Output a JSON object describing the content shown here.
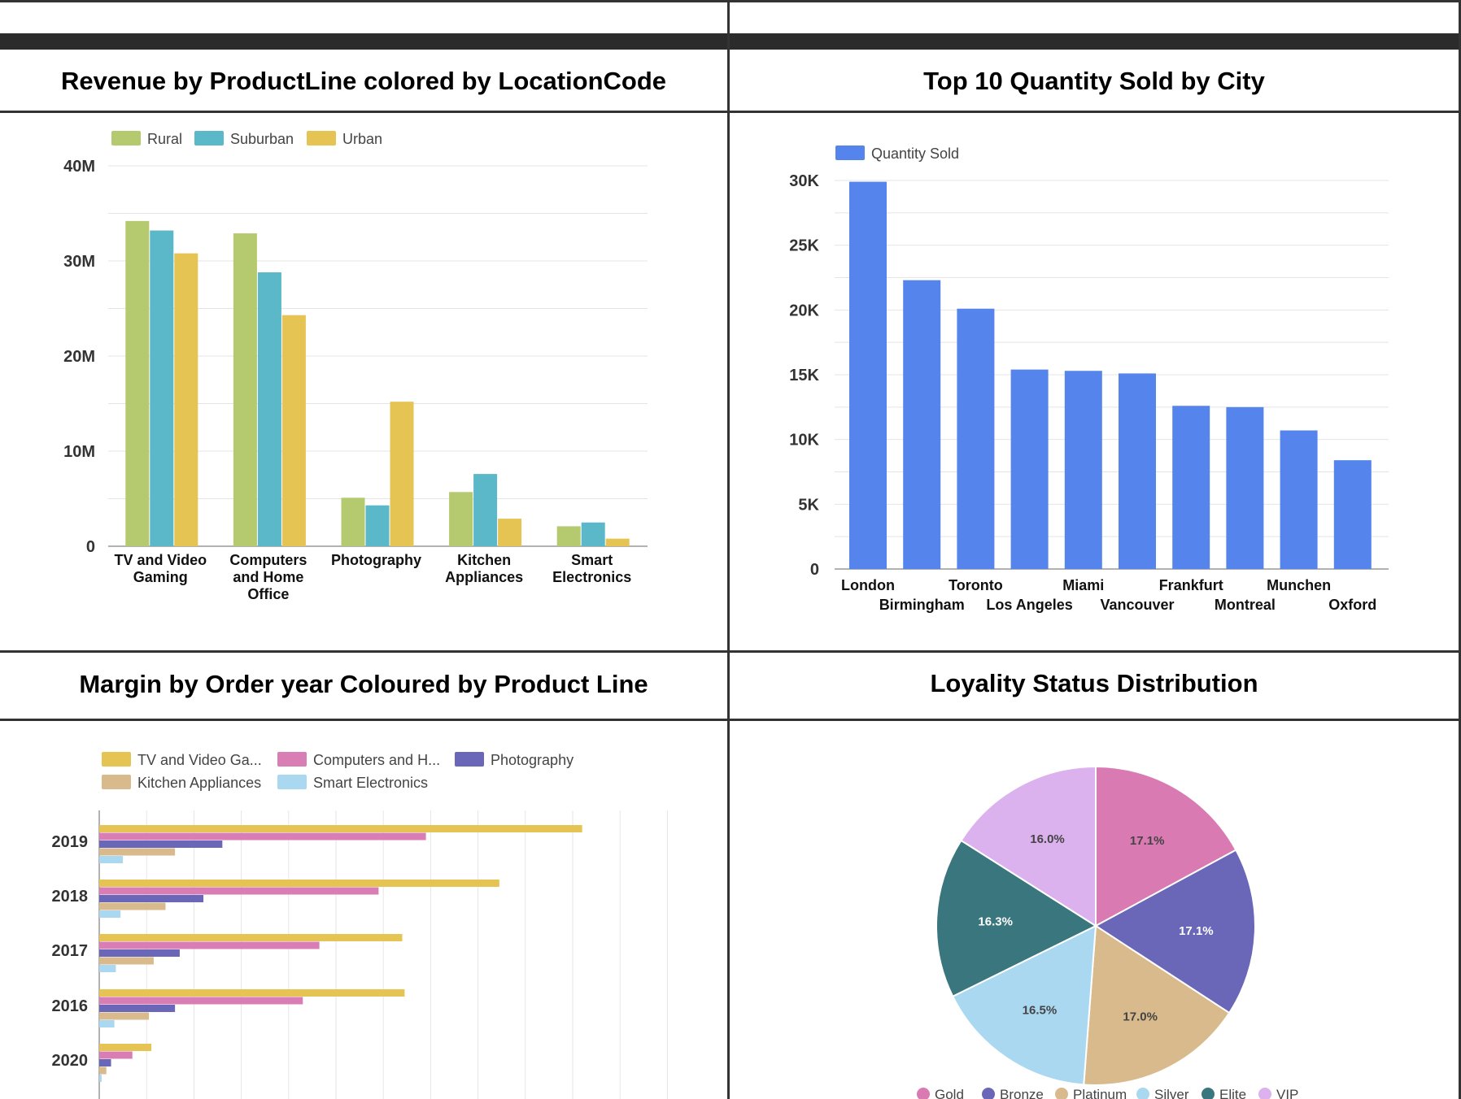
{
  "panels": {
    "revenue_title": "Revenue by ProductLine colored by LocationCode",
    "quantity_title": "Top 10 Quantity Sold by City",
    "margin_title": "Margin by Order year Coloured by Product Line",
    "loyalty_title": "Loyality Status Distribution"
  },
  "chart_data": [
    {
      "type": "bar",
      "title": "Revenue by ProductLine colored by LocationCode",
      "categories": [
        [
          "TV and Video",
          "Gaming"
        ],
        [
          "Computers",
          "and Home",
          "Office"
        ],
        [
          "Photography"
        ],
        [
          "Kitchen",
          "Appliances"
        ],
        [
          "Smart",
          "Electronics"
        ]
      ],
      "series": [
        {
          "name": "Rural",
          "color": "#b5c96e",
          "values": [
            34.2,
            32.9,
            5.1,
            5.7,
            2.1
          ]
        },
        {
          "name": "Suburban",
          "color": "#5bb8c8",
          "values": [
            33.2,
            28.8,
            4.3,
            7.6,
            2.5
          ]
        },
        {
          "name": "Urban",
          "color": "#e6c454",
          "values": [
            30.8,
            24.3,
            15.2,
            2.9,
            0.8
          ]
        }
      ],
      "ylim": [
        0,
        40
      ],
      "yticks": [
        "0",
        "10M",
        "20M",
        "30M",
        "40M"
      ],
      "grid": true,
      "legend": "top-left"
    },
    {
      "type": "bar",
      "title": "Top 10 Quantity Sold by City",
      "categories": [
        "London",
        "Birmingham",
        "Toronto",
        "Los Angeles",
        "Miami",
        "Vancouver",
        "Frankfurt",
        "Montreal",
        "Munchen",
        "Oxford"
      ],
      "series": [
        {
          "name": "Quantity Sold",
          "color": "#5585ec",
          "values": [
            29900,
            22300,
            20100,
            15400,
            15300,
            15100,
            12600,
            12500,
            10700,
            8400
          ]
        }
      ],
      "ylim": [
        0,
        30000
      ],
      "yticks": [
        "0",
        "5K",
        "10K",
        "15K",
        "20K",
        "25K",
        "30K"
      ],
      "grid": true,
      "legend": "top-left"
    },
    {
      "type": "bar",
      "orientation": "horizontal",
      "title": "Margin by Order year Coloured by Product Line",
      "categories": [
        "2019",
        "2018",
        "2017",
        "2016",
        "2020"
      ],
      "series": [
        {
          "name": "TV and Video Ga...",
          "color": "#e6c454",
          "values": [
            10.2,
            8.45,
            6.4,
            6.45,
            1.1
          ]
        },
        {
          "name": "Computers and H...",
          "color": "#d97eb4",
          "values": [
            6.9,
            5.9,
            4.65,
            4.3,
            0.7
          ]
        },
        {
          "name": "Photography",
          "color": "#6a67b8",
          "values": [
            2.6,
            2.2,
            1.7,
            1.6,
            0.25
          ]
        },
        {
          "name": "Kitchen Appliances",
          "color": "#d8ba8c",
          "values": [
            1.6,
            1.4,
            1.15,
            1.05,
            0.15
          ]
        },
        {
          "name": "Smart Electronics",
          "color": "#a9d8f0",
          "values": [
            0.5,
            0.45,
            0.35,
            0.32,
            0.05
          ]
        }
      ],
      "grid": true,
      "legend": "top-left"
    },
    {
      "type": "pie",
      "title": "Loyality Status Distribution",
      "slices": [
        {
          "name": "Gold",
          "value": 17.1,
          "label": "17.1%",
          "color": "#d97ab2"
        },
        {
          "name": "Bronze",
          "value": 17.1,
          "label": "17.1%",
          "color": "#6a67b8"
        },
        {
          "name": "Platinum",
          "value": 17.0,
          "label": "17.0%",
          "color": "#d8ba8c"
        },
        {
          "name": "Silver",
          "value": 16.5,
          "label": "16.5%",
          "color": "#a9d8f0"
        },
        {
          "name": "Elite",
          "value": 16.3,
          "label": "16.3%",
          "color": "#3a767e"
        },
        {
          "name": "VIP",
          "value": 16.0,
          "label": "16.0%",
          "color": "#dbb2ee"
        }
      ],
      "legend": "bottom"
    }
  ]
}
